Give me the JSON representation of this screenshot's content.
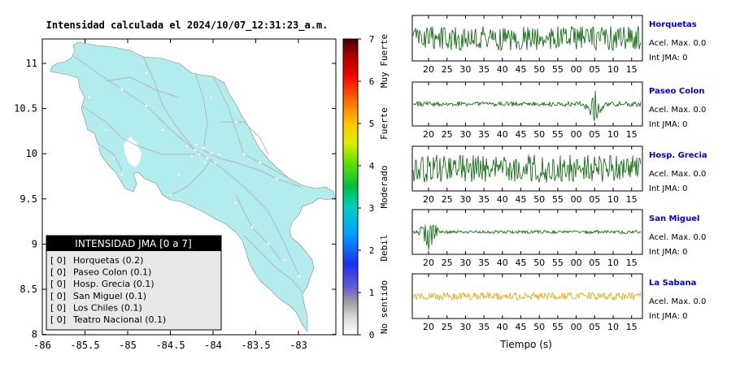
{
  "map": {
    "title": "Intensidad calculada el 2024/10/07_12:31:23_a.m.",
    "x_ticks": [
      "-86",
      "-85.5",
      "-85",
      "-84.5",
      "-84",
      "-83.5",
      "-83"
    ],
    "y_ticks": [
      "11",
      "10.5",
      "10",
      "9.5",
      "9",
      "8.5",
      "8"
    ],
    "land_color": "#b2ecec",
    "road_color": "#b8b8b8"
  },
  "legend": {
    "title": "INTENSIDAD JMA [0 a 7]",
    "items": [
      {
        "value": "[ 0]",
        "station": "Horquetas (0.2)"
      },
      {
        "value": "[ 0]",
        "station": "Paseo Colon (0.1)"
      },
      {
        "value": "[ 0]",
        "station": "Hosp. Grecia (0.1)"
      },
      {
        "value": "[ 0]",
        "station": "San Miguel (0.1)"
      },
      {
        "value": "[ 0]",
        "station": "Los Chiles (0.1)"
      },
      {
        "value": "[ 0]",
        "station": "Teatro Nacional (0.1)"
      }
    ]
  },
  "colorbar": {
    "ticks": [
      "7",
      "6",
      "5",
      "4",
      "3",
      "2",
      "1",
      "0"
    ],
    "labels": [
      "Muy Fuerte",
      "Fuerte",
      "Moderado",
      "Debil",
      "No sentido"
    ]
  },
  "chart_data": {
    "type": "line",
    "x_tick_labels": [
      "20",
      "25",
      "30",
      "35",
      "40",
      "45",
      "50",
      "55",
      "00",
      "05",
      "10",
      "15"
    ],
    "xlabel": "Tiempo (s)",
    "series": [
      {
        "name": "Horquetas",
        "acel_label": "Acel. Max. 0.0",
        "int_label": "Int JMA: 0",
        "color": "#006400",
        "amplitude": 0.6,
        "burst_at": null
      },
      {
        "name": "Paseo Colon",
        "acel_label": "Acel. Max. 0.0",
        "int_label": "Int JMA: 0",
        "color": "#006400",
        "amplitude": 0.12,
        "burst_at": "05"
      },
      {
        "name": "Hosp. Grecia",
        "acel_label": "Acel. Max. 0.0",
        "int_label": "Int JMA: 0",
        "color": "#006400",
        "amplitude": 0.7,
        "burst_at": null
      },
      {
        "name": "San Miguel",
        "acel_label": "Acel. Max. 0.0",
        "int_label": "Int JMA: 0",
        "color": "#006400",
        "amplitude": 0.08,
        "burst_at": "20"
      },
      {
        "name": "La Sabana",
        "acel_label": "Acel. Max. 0.0",
        "int_label": "Int JMA: 0",
        "color": "#f0a000",
        "amplitude": 0.2,
        "burst_at": "59"
      }
    ]
  }
}
